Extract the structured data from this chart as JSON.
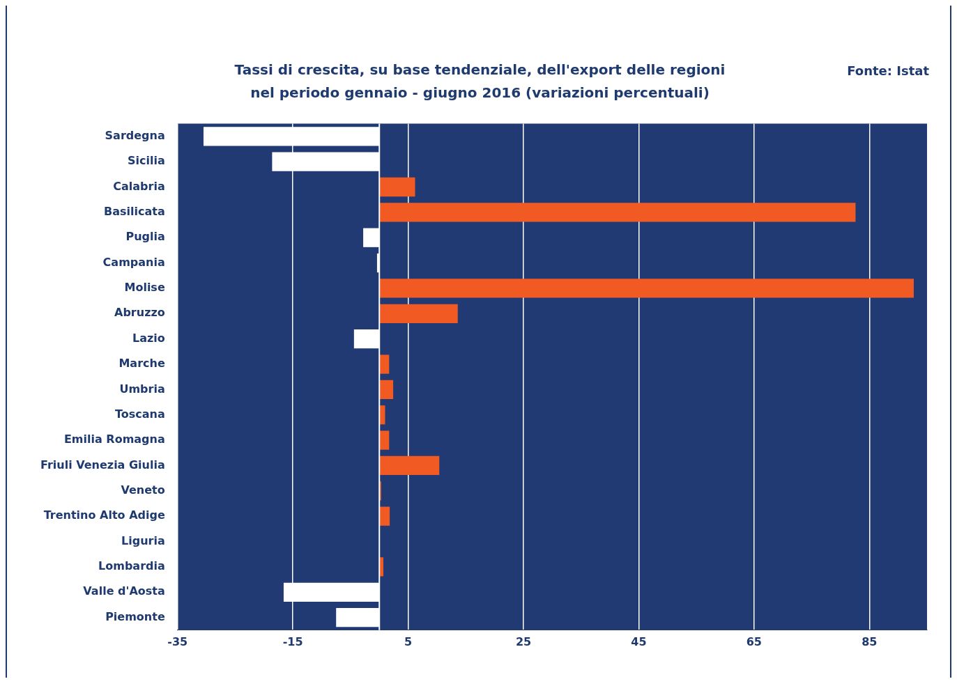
{
  "chart_data": {
    "type": "bar",
    "orientation": "horizontal",
    "title": "Tassi di crescita, su base tendenziale, dell'export delle regioni",
    "subtitle": "nel periodo gennaio - giugno 2016 (variazioni percentuali)",
    "annotations": [
      "Fonte: Istat"
    ],
    "categories": [
      "Sardegna",
      "Sicilia",
      "Calabria",
      "Basilicata",
      "Puglia",
      "Campania",
      "Molise",
      "Abruzzo",
      "Lazio",
      "Marche",
      "Umbria",
      "Toscana",
      "Emilia Romagna",
      "Friuli Venezia Giulia",
      "Veneto",
      "Trentino Alto Adige",
      "Liguria",
      "Lombardia",
      "Valle d'Aosta",
      "Piemonte"
    ],
    "values": [
      -30.5,
      -18.6,
      6.2,
      82.6,
      -2.8,
      -0.4,
      92.7,
      13.6,
      -4.4,
      1.7,
      2.4,
      1.0,
      1.7,
      10.4,
      0.3,
      1.8,
      0,
      0.7,
      -16.6,
      -7.5
    ],
    "colors": [
      "#ffffff",
      "#ffffff",
      "#f15a22",
      "#f15a22",
      "#ffffff",
      "#ffffff",
      "#f15a22",
      "#f15a22",
      "#ffffff",
      "#f15a22",
      "#f15a22",
      "#f15a22",
      "#f15a22",
      "#f15a22",
      "#f15a22",
      "#f15a22",
      "#ffffff",
      "#f15a22",
      "#ffffff",
      "#ffffff"
    ],
    "xlim": [
      -35,
      95
    ],
    "xticks": [
      -35,
      -15,
      5,
      25,
      45,
      65,
      85
    ],
    "grid": "x",
    "ref_lines": [
      {
        "axis": "x",
        "value": 0,
        "color": "#ffffff"
      }
    ]
  }
}
